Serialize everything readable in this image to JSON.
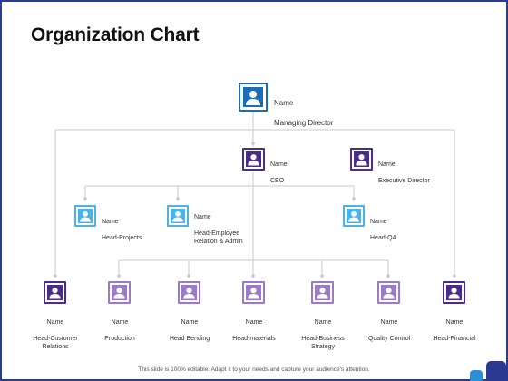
{
  "title": "Organization Chart",
  "footer": "This slide is 100% editable. Adapt it to your needs and capture your audience's attention.",
  "colors": {
    "frame": "#2b3a8f",
    "dark_blue": "#1e6db3",
    "deep_purple": "#4a2d8a",
    "light_blue": "#4ab3e8",
    "lavender": "#9a7ac9",
    "connector": "#c8c8c8"
  },
  "icon_name": "person-icon",
  "nodes": {
    "md": {
      "name": "Name",
      "role": "Managing Director"
    },
    "ceo": {
      "name": "Name",
      "role": "CEO"
    },
    "ed": {
      "name": "Name",
      "role": "Executive Director"
    },
    "hp": {
      "name": "Name",
      "role": "Head-Projects"
    },
    "her": {
      "name": "Name",
      "role": "Head-Employee\nRelation & Admin"
    },
    "hqa": {
      "name": "Name",
      "role": "Head-QA"
    },
    "hcr": {
      "name": "Name",
      "role": "Head-Customer\nRelations"
    },
    "prod": {
      "name": "Name",
      "role": "Production"
    },
    "hb": {
      "name": "Name",
      "role": "Head Bending"
    },
    "hm": {
      "name": "Name",
      "role": "Head-materials"
    },
    "hbs": {
      "name": "Name",
      "role": "Head-Business\nStrategy"
    },
    "qc": {
      "name": "Name",
      "role": "Quality Control"
    },
    "hf": {
      "name": "Name",
      "role": "Head-Financial"
    }
  }
}
